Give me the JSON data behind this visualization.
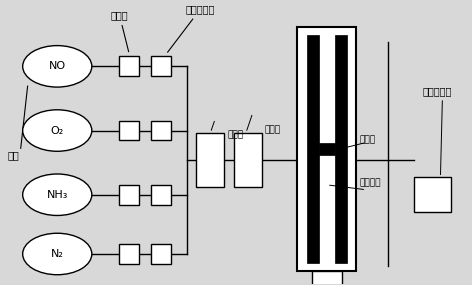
{
  "bg_color": "#d8d8d8",
  "line_color": "#000000",
  "ellipse_fill": "#ffffff",
  "box_fill": "#ffffff",
  "gas_labels": [
    "NO",
    "O₂",
    "NH₃",
    "N₂"
  ],
  "label_qiyuan": "气源",
  "label_jianya": "减压阀",
  "label_zhiliang": "质量流量计",
  "label_hunhe": "混合器",
  "label_yure": "预热器",
  "label_jiare": "加热器",
  "label_ceshi": "测试样品",
  "label_yanqi": "烟气分析仪"
}
